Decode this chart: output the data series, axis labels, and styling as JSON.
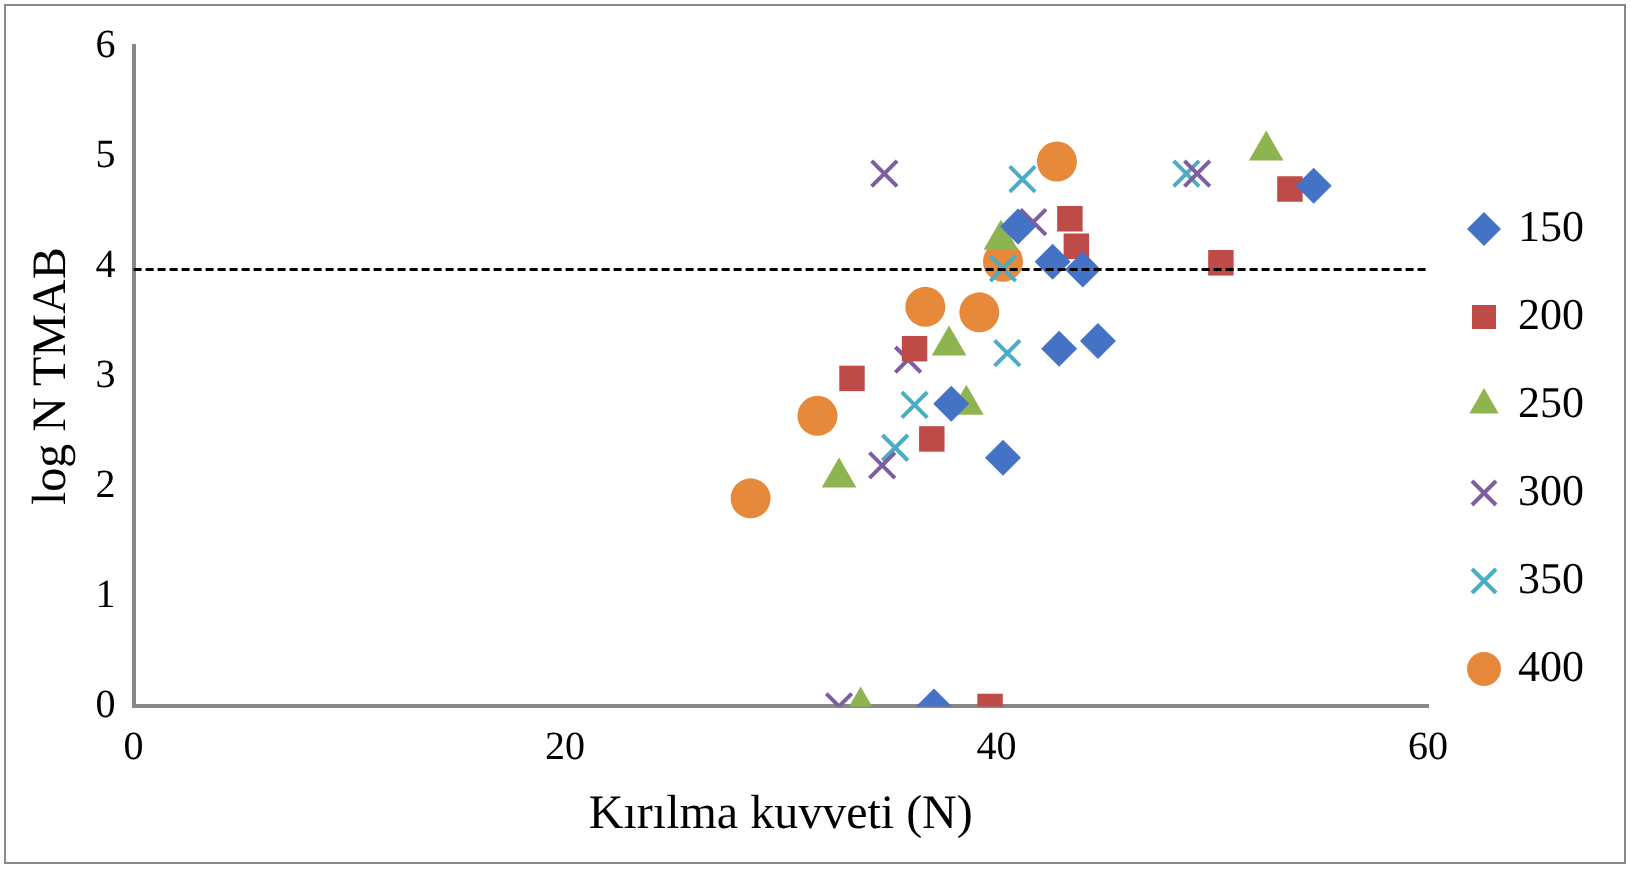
{
  "chart_data": {
    "type": "scatter",
    "xlabel": "Kırılma kuvveti (N)",
    "ylabel": "log N TMAB",
    "xlim": [
      0,
      60
    ],
    "xticks": [
      0,
      20,
      40,
      60
    ],
    "ylim": [
      0,
      6
    ],
    "yticks": [
      0,
      1,
      2,
      3,
      4,
      5,
      6
    ],
    "grid": false,
    "legend": "right",
    "ref_lines": [
      {
        "axis": "y",
        "value": 3.97,
        "line_style": "dashed",
        "color": "#000000"
      }
    ],
    "series": [
      {
        "name": "150",
        "color": "#4472c4",
        "marker": "diamond",
        "x": [
          37.1,
          40.3,
          37.9,
          42.9,
          44.7,
          41.0,
          42.6,
          44.0,
          54.7
        ],
        "values": [
          0,
          2.26,
          2.75,
          3.25,
          3.32,
          4.36,
          4.04,
          3.97,
          4.73
        ]
      },
      {
        "name": "200",
        "color": "#be4b48",
        "marker": "square",
        "x": [
          39.7,
          37.0,
          33.3,
          36.2,
          43.7,
          43.4,
          50.4,
          53.6
        ],
        "values": [
          0,
          2.43,
          2.98,
          3.25,
          4.18,
          4.43,
          4.03,
          4.7
        ]
      },
      {
        "name": "250",
        "color": "#8eb44f",
        "marker": "triangle",
        "x": [
          33.7,
          32.7,
          38.6,
          37.8,
          40.2,
          52.5
        ],
        "values": [
          0,
          2.08,
          2.74,
          3.28,
          4.24,
          5.05
        ]
      },
      {
        "name": "300",
        "color": "#7d5fa0",
        "marker": "cross",
        "x": [
          32.7,
          34.7,
          35.9,
          41.7,
          34.8,
          49.3
        ],
        "values": [
          0,
          2.19,
          3.15,
          4.4,
          4.84,
          4.84
        ]
      },
      {
        "name": "350",
        "color": "#4bacc6",
        "marker": "cross",
        "x": [
          35.3,
          36.2,
          40.5,
          40.3,
          41.2,
          48.8
        ],
        "values": [
          2.35,
          2.74,
          3.21,
          3.98,
          4.79,
          4.84
        ]
      },
      {
        "name": "400",
        "color": "#e6893a",
        "marker": "circle",
        "x": [
          28.6,
          31.7,
          36.7,
          39.2,
          40.3,
          42.8
        ],
        "values": [
          1.89,
          2.64,
          3.63,
          3.58,
          4.04,
          4.95
        ]
      }
    ]
  }
}
